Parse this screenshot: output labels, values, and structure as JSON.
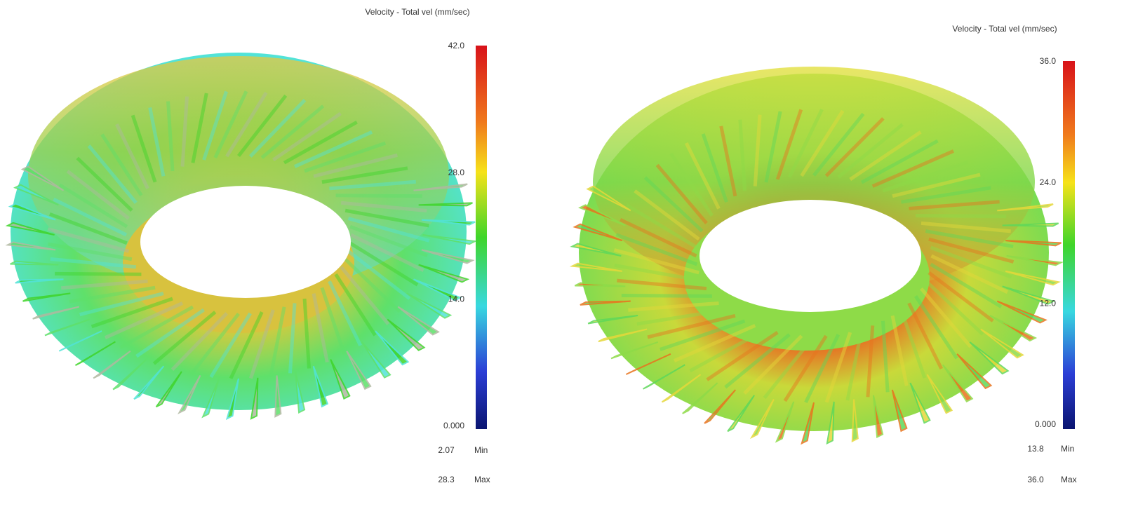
{
  "panels": [
    {
      "title": "Velocity - Total vel (mm/sec)",
      "ticks": [
        "42.0",
        "28.0",
        "14.0",
        "0.000"
      ],
      "min": {
        "value": "2.07",
        "label": "Min"
      },
      "max": {
        "value": "28.3",
        "label": "Max"
      }
    },
    {
      "title": "Velocity - Total vel (mm/sec)",
      "ticks": [
        "36.0",
        "24.0",
        "12.0",
        "0.000"
      ],
      "min": {
        "value": "13.8",
        "label": "Min"
      },
      "max": {
        "value": "36.0",
        "label": "Max"
      }
    }
  ]
}
